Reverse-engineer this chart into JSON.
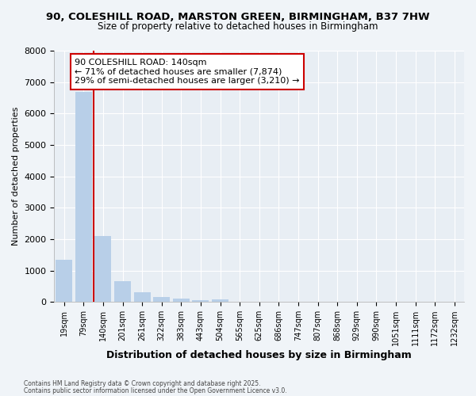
{
  "title_line1": "90, COLESHILL ROAD, MARSTON GREEN, BIRMINGHAM, B37 7HW",
  "title_line2": "Size of property relative to detached houses in Birmingham",
  "xlabel": "Distribution of detached houses by size in Birmingham",
  "ylabel": "Number of detached properties",
  "categories": [
    "19sqm",
    "79sqm",
    "140sqm",
    "201sqm",
    "261sqm",
    "322sqm",
    "383sqm",
    "443sqm",
    "504sqm",
    "565sqm",
    "625sqm",
    "686sqm",
    "747sqm",
    "807sqm",
    "868sqm",
    "929sqm",
    "990sqm",
    "1051sqm",
    "1111sqm",
    "1172sqm",
    "1232sqm"
  ],
  "values": [
    1350,
    6700,
    2100,
    650,
    300,
    150,
    100,
    50,
    70,
    0,
    0,
    0,
    0,
    0,
    0,
    0,
    0,
    0,
    0,
    0,
    0
  ],
  "bar_color": "#b8cfe8",
  "vline_color": "#cc0000",
  "vline_index": 2,
  "annotation_text": "90 COLESHILL ROAD: 140sqm\n← 71% of detached houses are smaller (7,874)\n29% of semi-detached houses are larger (3,210) →",
  "annotation_box_color": "#ffffff",
  "annotation_border_color": "#cc0000",
  "ylim": [
    0,
    8000
  ],
  "yticks": [
    0,
    1000,
    2000,
    3000,
    4000,
    5000,
    6000,
    7000,
    8000
  ],
  "footnote_line1": "Contains HM Land Registry data © Crown copyright and database right 2025.",
  "footnote_line2": "Contains public sector information licensed under the Open Government Licence v3.0.",
  "bg_color": "#f0f4f8",
  "plot_bg_color": "#e8eef4",
  "grid_color": "#ffffff"
}
